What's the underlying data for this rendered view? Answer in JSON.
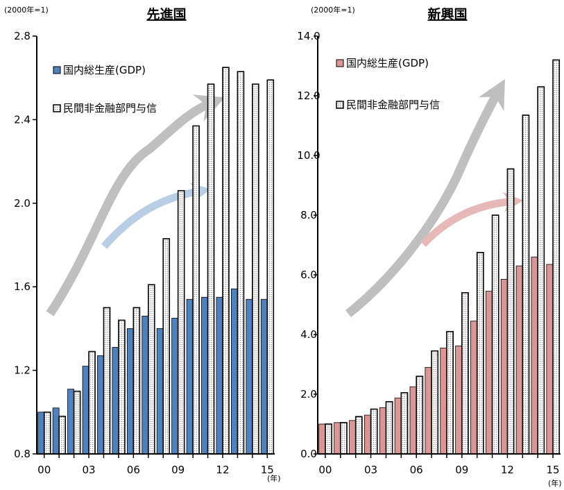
{
  "chart_data": [
    {
      "type": "bar",
      "title": "先進国",
      "unit_label": "(2000年=1)",
      "x_unit": "(年)",
      "years": [
        2000,
        2001,
        2002,
        2003,
        2004,
        2005,
        2006,
        2007,
        2008,
        2009,
        2010,
        2011,
        2012,
        2013,
        2014,
        2015
      ],
      "xtick_labels": [
        "00",
        "03",
        "06",
        "09",
        "12",
        "15"
      ],
      "xtick_years": [
        2000,
        2003,
        2006,
        2009,
        2012,
        2015
      ],
      "ylim": [
        0.8,
        2.8
      ],
      "yticks": [
        "0.8",
        "1.2",
        "1.6",
        "2.0",
        "2.4",
        "2.8"
      ],
      "series": [
        {
          "name": "国内総生産(GDP)",
          "color": "#4f81bd",
          "values": [
            1.0,
            1.02,
            1.11,
            1.22,
            1.27,
            1.31,
            1.4,
            1.46,
            1.4,
            1.45,
            1.54,
            1.55,
            1.55,
            1.59,
            1.54,
            1.54
          ]
        },
        {
          "name": "民間非金融部門与信",
          "color": "#d9d9d9",
          "values": [
            1.0,
            0.98,
            1.1,
            1.29,
            1.5,
            1.44,
            1.5,
            1.61,
            1.83,
            2.06,
            2.37,
            2.57,
            2.65,
            2.63,
            2.57,
            2.59
          ]
        }
      ]
    },
    {
      "type": "bar",
      "title": "新興国",
      "unit_label": "(2000年=1)",
      "x_unit": "(年)",
      "years": [
        2000,
        2001,
        2002,
        2003,
        2004,
        2005,
        2006,
        2007,
        2008,
        2009,
        2010,
        2011,
        2012,
        2013,
        2014,
        2015
      ],
      "xtick_labels": [
        "00",
        "03",
        "06",
        "09",
        "12",
        "15"
      ],
      "xtick_years": [
        2000,
        2003,
        2006,
        2009,
        2012,
        2015
      ],
      "ylim": [
        0.0,
        14.0
      ],
      "yticks": [
        "0.0",
        "2.0",
        "4.0",
        "6.0",
        "8.0",
        "10.0",
        "12.0",
        "14.0"
      ],
      "series": [
        {
          "name": "国内総生産(GDP)",
          "color": "#d99694",
          "values": [
            1.0,
            1.05,
            1.12,
            1.3,
            1.55,
            1.87,
            2.25,
            2.9,
            3.55,
            3.62,
            4.45,
            5.45,
            5.85,
            6.3,
            6.6,
            6.35
          ]
        },
        {
          "name": "民間非金融部門与信",
          "color": "#d9d9d9",
          "values": [
            1.0,
            1.05,
            1.25,
            1.5,
            1.75,
            2.05,
            2.6,
            3.45,
            4.1,
            5.4,
            6.75,
            8.0,
            9.55,
            11.35,
            12.3,
            13.2
          ]
        }
      ]
    }
  ]
}
